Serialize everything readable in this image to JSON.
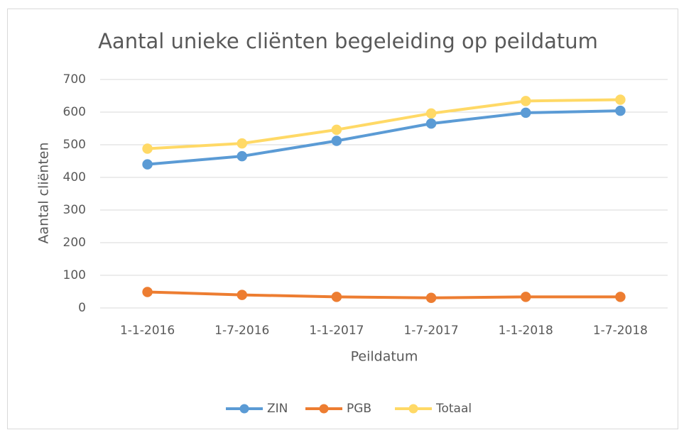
{
  "chart_data": {
    "type": "line",
    "title": "Aantal unieke cliënten begeleiding op peildatum",
    "x_label": "Peildatum",
    "y_label": "Aantal cliënten",
    "categories": [
      "1-1-2016",
      "1-7-2016",
      "1-1-2017",
      "1-7-2017",
      "1-1-2018",
      "1-7-2018"
    ],
    "series": [
      {
        "name": "ZIN",
        "color": "#5b9bd5",
        "values": [
          440,
          465,
          512,
          565,
          598,
          604
        ]
      },
      {
        "name": "PGB",
        "color": "#ed7d31",
        "values": [
          49,
          40,
          34,
          31,
          34,
          34
        ]
      },
      {
        "name": "Totaal",
        "color": "#ffd966",
        "values": [
          488,
          504,
          546,
          596,
          634,
          638
        ]
      }
    ],
    "ylim": [
      0,
      700
    ],
    "yticks": [
      0,
      100,
      200,
      300,
      400,
      500,
      600,
      700
    ],
    "grid": true,
    "legend": "bottom"
  }
}
